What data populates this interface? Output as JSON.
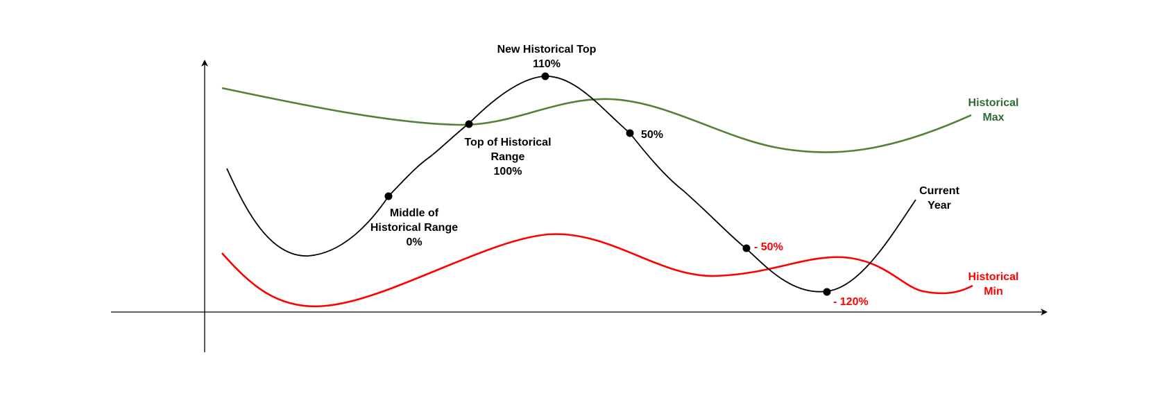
{
  "colors": {
    "current_year": "#000000",
    "historical_max": "#538135",
    "historical_min": "#ff0000",
    "label_green": "#2e6b31",
    "label_red": "#ff0000",
    "axis": "#000000"
  },
  "series": {
    "historical_max": {
      "label_line1": "Historical",
      "label_line2": "Max"
    },
    "historical_min": {
      "label_line1": "Historical",
      "label_line2": "Min"
    },
    "current_year": {
      "label_line1": "Current",
      "label_line2": "Year"
    }
  },
  "annotations": {
    "middle": {
      "line1": "Middle of",
      "line2": "Historical Range",
      "line3": "0%"
    },
    "top_range": {
      "line1": "Top of Historical",
      "line2": "Range",
      "line3": "100%"
    },
    "new_top": {
      "line1": "New Historical Top",
      "line2": "110%"
    },
    "fifty": {
      "text": "50%"
    },
    "minus_fifty": {
      "text": "- 50%"
    },
    "minus_120": {
      "text": "- 120%"
    }
  }
}
